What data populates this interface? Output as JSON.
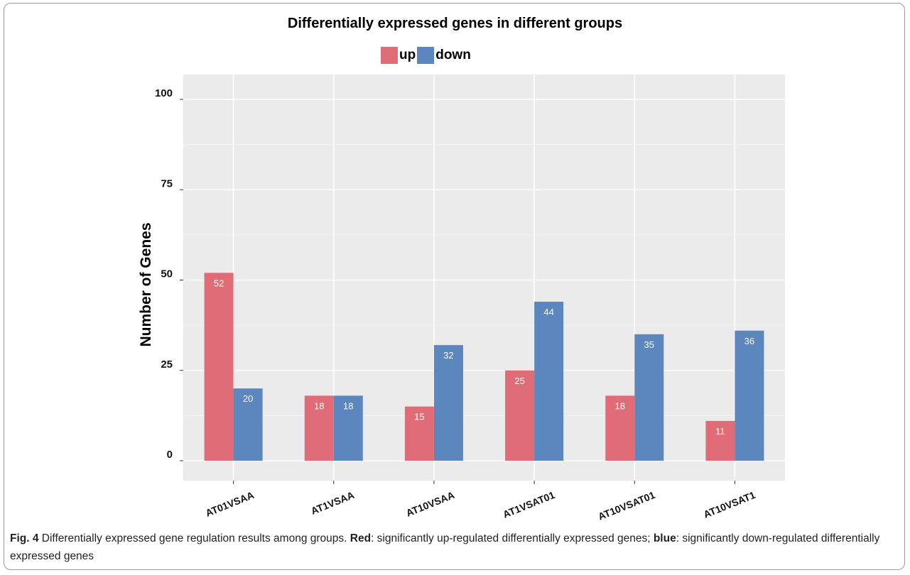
{
  "colors": {
    "up": "#df6c77",
    "down": "#5b86be",
    "panel": "#ebebeb",
    "grid": "#ffffff"
  },
  "chart_data": {
    "type": "bar",
    "title": "Differentially expressed genes in different groups",
    "xlabel": "",
    "ylabel": "Number of Genes",
    "ylim": [
      0,
      100
    ],
    "yticks": [
      "0",
      "25",
      "50",
      "75",
      "100"
    ],
    "categories": [
      "AT01VSAA",
      "AT1VSAA",
      "AT10VSAA",
      "AT1VSAT01",
      "AT10VSAT01",
      "AT10VSAT1"
    ],
    "series": [
      {
        "name": "up",
        "values": [
          52,
          18,
          15,
          25,
          18,
          11
        ]
      },
      {
        "name": "down",
        "values": [
          20,
          18,
          32,
          44,
          35,
          36
        ]
      }
    ],
    "grid": true,
    "legend": "top"
  },
  "caption": {
    "fig_label": "Fig. 4",
    "text_1": " Differentially expressed gene regulation results among groups. ",
    "red_word": "Red",
    "text_2": ": significantly up-regulated differentially expressed genes; ",
    "blue_word": "blue",
    "text_3": ": significantly down-regulated differentially expressed genes"
  }
}
